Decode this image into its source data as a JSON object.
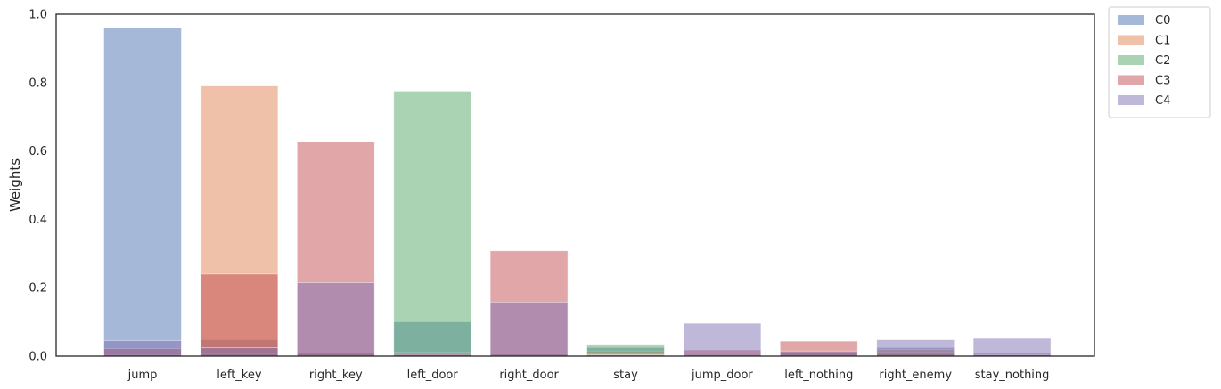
{
  "chart_data": {
    "type": "bar",
    "title": "",
    "xlabel": "",
    "ylabel": "Weights",
    "ylim": [
      0,
      1.0
    ],
    "yticks": [
      "0.0",
      "0.2",
      "0.4",
      "0.6",
      "0.8",
      "1.0"
    ],
    "grid": false,
    "legend_position": "outside-top-right",
    "bar_opacity": 0.5,
    "categories": [
      "jump",
      "left_key",
      "right_key",
      "left_door",
      "right_door",
      "stay",
      "jump_door",
      "left_nothing",
      "right_enemy",
      "stay_nothing"
    ],
    "series": [
      {
        "name": "C0",
        "color": "#4c72b0",
        "values": [
          0.96,
          0.048,
          0.005,
          0.1,
          0.005,
          0.025,
          0.003,
          0.008,
          0.025,
          0.01
        ]
      },
      {
        "name": "C1",
        "color": "#dd8452",
        "values": [
          0.003,
          0.79,
          0.01,
          0.005,
          0.005,
          0.015,
          0.005,
          0.004,
          0.02,
          0.005
        ]
      },
      {
        "name": "C2",
        "color": "#55a868",
        "values": [
          0.003,
          0.006,
          0.008,
          0.775,
          0.005,
          0.032,
          0.003,
          0.01,
          0.01,
          0.004
        ]
      },
      {
        "name": "C3",
        "color": "#c44e52",
        "values": [
          0.022,
          0.24,
          0.627,
          0.01,
          0.308,
          0.005,
          0.018,
          0.044,
          0.008,
          0.004
        ]
      },
      {
        "name": "C4",
        "color": "#8172b3",
        "values": [
          0.046,
          0.025,
          0.215,
          0.005,
          0.158,
          0.003,
          0.096,
          0.015,
          0.048,
          0.052
        ]
      }
    ]
  }
}
